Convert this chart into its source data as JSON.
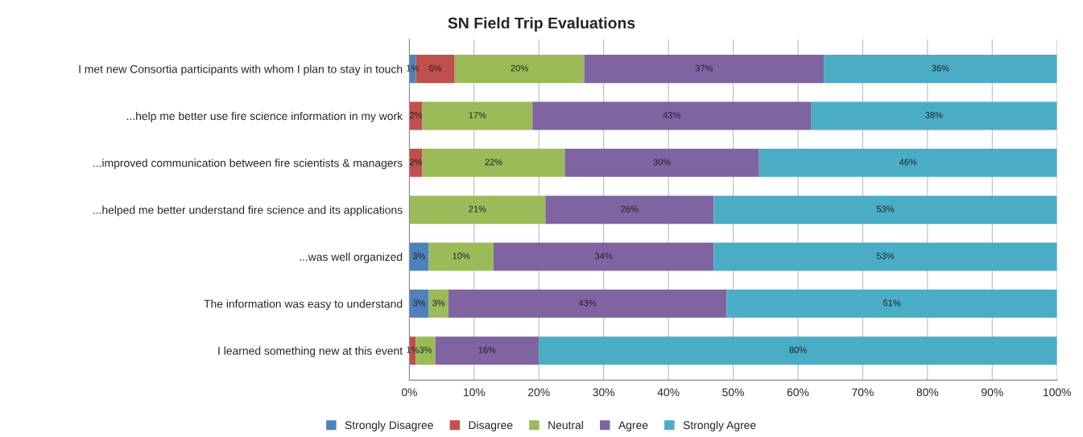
{
  "chart_data": {
    "type": "bar",
    "orientation": "horizontal",
    "stacked": true,
    "title": "SN Field Trip Evaluations",
    "categories": [
      "I met new Consortia participants with whom I plan to stay in touch",
      "...help me better use fire science information in my work",
      "...improved communication between fire scientists & managers",
      "...helped me better understand fire science and its applications",
      "...was well organized",
      "The information was easy to understand",
      "I learned something new at this event"
    ],
    "series": [
      {
        "name": "Strongly Disagree",
        "color": "#4f81bd",
        "values": [
          1,
          0,
          0,
          0,
          3,
          3,
          0
        ],
        "value_labels": [
          "1%",
          null,
          null,
          null,
          "3%",
          "3%",
          null
        ]
      },
      {
        "name": "Disagree",
        "color": "#c0504d",
        "values": [
          6,
          2,
          2,
          0,
          0,
          0,
          1
        ],
        "value_labels": [
          "6%",
          "2%",
          "2%",
          null,
          null,
          null,
          "1%"
        ]
      },
      {
        "name": "Neutral",
        "color": "#9bbb59",
        "values": [
          20,
          17,
          22,
          21,
          10,
          3,
          3
        ],
        "value_labels": [
          "20%",
          "17%",
          "22%",
          "21%",
          "10%",
          "3%",
          "3%"
        ]
      },
      {
        "name": "Agree",
        "color": "#8064a2",
        "values": [
          37,
          43,
          30,
          26,
          34,
          43,
          16
        ],
        "value_labels": [
          "37%",
          "43%",
          "30%",
          "26%",
          "34%",
          "43%",
          "16%"
        ]
      },
      {
        "name": "Strongly Agree",
        "color": "#4bacc6",
        "values": [
          36,
          38,
          46,
          53,
          53,
          51,
          80
        ],
        "value_labels": [
          "36%",
          "38%",
          "46%",
          "53%",
          "53%",
          "51%",
          "80%"
        ]
      }
    ],
    "xlim": [
      0,
      100
    ],
    "xticks": [
      {
        "value": 0,
        "label": "0%"
      },
      {
        "value": 10,
        "label": "10%"
      },
      {
        "value": 20,
        "label": "20%"
      },
      {
        "value": 30,
        "label": "30%"
      },
      {
        "value": 40,
        "label": "40%"
      },
      {
        "value": 50,
        "label": "50%"
      },
      {
        "value": 60,
        "label": "60%"
      },
      {
        "value": 70,
        "label": "70%"
      },
      {
        "value": 80,
        "label": "80%"
      },
      {
        "value": 90,
        "label": "90%"
      },
      {
        "value": 100,
        "label": "100%"
      }
    ],
    "grid": "x",
    "legend": "bottom"
  }
}
